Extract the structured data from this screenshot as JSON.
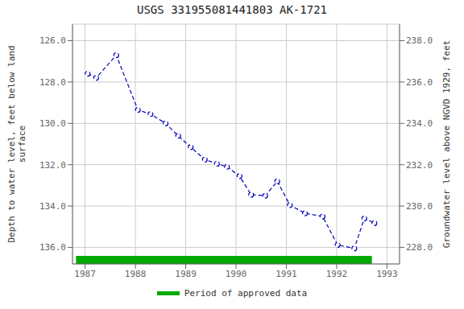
{
  "chart_data": {
    "type": "line",
    "title": "USGS 331955081441803 AK-1721",
    "x": [
      1987.05,
      1987.22,
      1987.62,
      1988.05,
      1988.3,
      1988.6,
      1988.85,
      1989.1,
      1989.38,
      1989.62,
      1989.82,
      1990.07,
      1990.3,
      1990.58,
      1990.82,
      1991.07,
      1991.37,
      1991.72,
      1992.02,
      1992.35,
      1992.55,
      1992.75
    ],
    "xlim": [
      1986.75,
      1993.25
    ],
    "xticks": [
      1987,
      1988,
      1989,
      1990,
      1991,
      1992,
      1993
    ],
    "ylim": [
      136.8,
      125.2
    ],
    "yticks": [
      {
        "value": 126.0,
        "label": "126.0"
      },
      {
        "value": 128.0,
        "label": "128.0"
      },
      {
        "value": 130.0,
        "label": "130.0"
      },
      {
        "value": 132.0,
        "label": "132.0"
      },
      {
        "value": 134.0,
        "label": "134.0"
      },
      {
        "value": 136.0,
        "label": "136.0"
      }
    ],
    "y2lim": [
      227.2,
      238.8
    ],
    "y2ticks": [
      {
        "value": 228.0,
        "label": "228.0"
      },
      {
        "value": 230.0,
        "label": "230.0"
      },
      {
        "value": 232.0,
        "label": "232.0"
      },
      {
        "value": 234.0,
        "label": "234.0"
      },
      {
        "value": 236.0,
        "label": "236.0"
      },
      {
        "value": 238.0,
        "label": "238.0"
      }
    ],
    "y_label": "Depth to water level, feet below land\nsurface",
    "y2_label": "Groundwater level above NGVD 1929, feet",
    "grid": true,
    "legend": "bottom",
    "series": [
      {
        "values": [
          127.6,
          127.8,
          126.7,
          129.35,
          129.55,
          130.0,
          130.6,
          131.15,
          131.75,
          131.95,
          132.1,
          132.55,
          133.45,
          133.5,
          132.8,
          133.95,
          134.35,
          134.5,
          135.88,
          136.05,
          134.6,
          134.82
        ],
        "color": "#0000bb",
        "marker": "circle",
        "line_style": "dashed"
      },
      {
        "name": "Period of approved data",
        "type": "span",
        "x": [
          1986.82,
          1992.7
        ],
        "color": "#00aa00"
      }
    ]
  }
}
